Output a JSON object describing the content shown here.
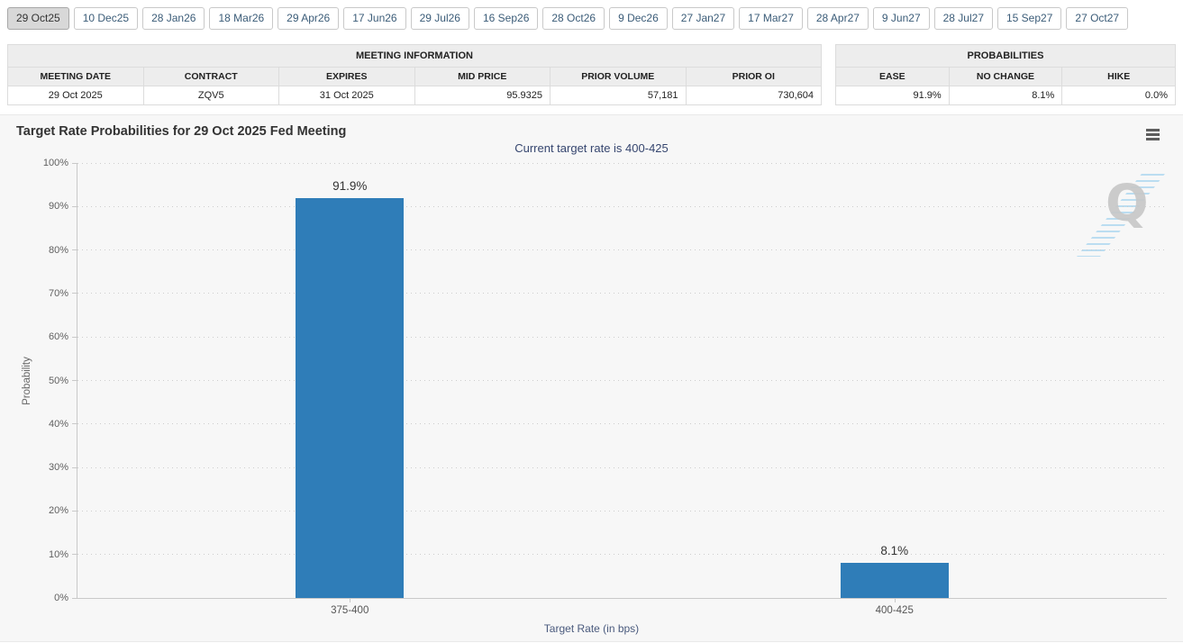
{
  "tabs": {
    "selected": "29 Oct25",
    "items": [
      "29 Oct25",
      "10 Dec25",
      "28 Jan26",
      "18 Mar26",
      "29 Apr26",
      "17 Jun26",
      "29 Jul26",
      "16 Sep26",
      "28 Oct26",
      "9 Dec26",
      "27 Jan27",
      "17 Mar27",
      "28 Apr27",
      "9 Jun27",
      "28 Jul27",
      "15 Sep27",
      "27 Oct27"
    ]
  },
  "meeting_table": {
    "title": "MEETING INFORMATION",
    "columns": [
      "MEETING DATE",
      "CONTRACT",
      "EXPIRES",
      "MID PRICE",
      "PRIOR VOLUME",
      "PRIOR OI"
    ],
    "values": [
      "29 Oct 2025",
      "ZQV5",
      "31 Oct 2025",
      "95.9325",
      "57,181",
      "730,604"
    ]
  },
  "probabilities_table": {
    "title": "PROBABILITIES",
    "columns": [
      "EASE",
      "NO CHANGE",
      "HIKE"
    ],
    "values": [
      "91.9%",
      "8.1%",
      "0.0%"
    ]
  },
  "chart": {
    "watermark_letter": "Q",
    "menu_icon": "hamburger-icon"
  },
  "chart_data": {
    "type": "bar",
    "title": "Target Rate Probabilities for 29 Oct 2025 Fed Meeting",
    "subtitle": "Current target rate is 400-425",
    "categories": [
      "375-400",
      "400-425"
    ],
    "values": [
      91.9,
      8.1
    ],
    "value_labels": [
      "91.9%",
      "8.1%"
    ],
    "xlabel": "Target Rate (in bps)",
    "ylabel": "Probability",
    "ylim": [
      0,
      100
    ],
    "ytick_step": 10,
    "ytick_suffix": "%",
    "grid": "dotted horizontal",
    "legend": "none",
    "bar_color": "#2f7db8"
  },
  "colors": {
    "bar": "#2f7db8",
    "chart_background": "#f7f7f7",
    "subtitle_text": "#36466f",
    "axis_title_text": "#4a5a7d",
    "selected_tab_background": "#d8d8d8",
    "tab_text": "#3b5c78",
    "table_header_background": "#ededed"
  }
}
